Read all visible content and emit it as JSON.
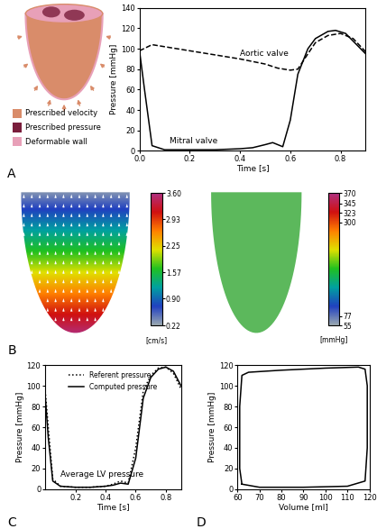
{
  "chart_data": [
    {
      "type": "line",
      "panel": "A",
      "x_label": "Time [s]",
      "y_label": "Pressure [mmHg]",
      "xlim": [
        0.0,
        0.9
      ],
      "xticks": [
        0.0,
        0.2,
        0.4,
        0.6,
        0.8
      ],
      "ylim": [
        0,
        140
      ],
      "yticks": [
        0,
        20,
        40,
        60,
        80,
        100,
        120,
        140
      ],
      "series": [
        {
          "name": "Aortic valve",
          "color": "#000000",
          "line_style": "dashed",
          "x": [
            0.0,
            0.05,
            0.1,
            0.2,
            0.3,
            0.4,
            0.5,
            0.55,
            0.6,
            0.63,
            0.67,
            0.7,
            0.75,
            0.8,
            0.85,
            0.9
          ],
          "values": [
            98,
            104,
            102,
            98,
            94,
            90,
            85,
            81,
            79,
            80,
            95,
            106,
            113,
            115,
            110,
            97
          ]
        },
        {
          "name": "Mitral valve",
          "color": "#000000",
          "line_style": "solid",
          "x": [
            0.0,
            0.02,
            0.05,
            0.1,
            0.2,
            0.3,
            0.4,
            0.45,
            0.5,
            0.53,
            0.57,
            0.6,
            0.63,
            0.67,
            0.7,
            0.75,
            0.78,
            0.82,
            0.86,
            0.9
          ],
          "values": [
            98,
            60,
            5,
            1,
            1,
            1,
            2,
            3,
            6,
            8,
            4,
            30,
            75,
            100,
            110,
            117,
            118,
            115,
            105,
            95
          ]
        }
      ],
      "annotations": [
        {
          "text": "Aortic valve",
          "x": 0.4,
          "y": 93
        },
        {
          "text": "Mitral valve",
          "x": 0.12,
          "y": 7
        }
      ]
    },
    {
      "type": "line",
      "panel": "C",
      "x_label": "Time [s]",
      "y_label": "Pressure [mmHg]",
      "xlim": [
        0.0,
        0.9
      ],
      "xticks": [
        0.2,
        0.4,
        0.6,
        0.8
      ],
      "ylim": [
        0,
        120
      ],
      "yticks": [
        0,
        20,
        40,
        60,
        80,
        100,
        120
      ],
      "legend": "upper center",
      "series": [
        {
          "name": "Referent pressure",
          "color": "#000000",
          "line_style": "dotted",
          "x": [
            0.0,
            0.02,
            0.05,
            0.1,
            0.2,
            0.3,
            0.4,
            0.45,
            0.5,
            0.55,
            0.6,
            0.65,
            0.7,
            0.75,
            0.8,
            0.85,
            0.9
          ],
          "values": [
            95,
            60,
            10,
            3,
            2,
            2,
            3,
            5,
            8,
            6,
            40,
            95,
            110,
            117,
            118,
            112,
            97
          ]
        },
        {
          "name": "Computed pressure",
          "color": "#000000",
          "line_style": "solid",
          "x": [
            0.0,
            0.02,
            0.05,
            0.1,
            0.2,
            0.3,
            0.4,
            0.45,
            0.5,
            0.55,
            0.6,
            0.65,
            0.7,
            0.75,
            0.8,
            0.85,
            0.9
          ],
          "values": [
            90,
            50,
            8,
            3,
            2,
            2,
            3,
            4,
            6,
            5,
            30,
            88,
            108,
            116,
            118,
            114,
            100
          ]
        }
      ],
      "annotations": [
        {
          "text": "Average LV pressure",
          "x": 0.1,
          "y": 12
        }
      ]
    },
    {
      "type": "line",
      "panel": "D",
      "x_label": "Volume [ml]",
      "y_label": "Pressure [mmHg]",
      "xlim": [
        60,
        120
      ],
      "xticks": [
        60,
        70,
        80,
        90,
        100,
        110,
        120
      ],
      "ylim": [
        0,
        120
      ],
      "yticks": [
        0,
        20,
        40,
        60,
        80,
        100,
        120
      ],
      "series": [
        {
          "color": "#000000",
          "line_style": "solid",
          "x": [
            62,
            61,
            61,
            62,
            65,
            80,
            100,
            115,
            118,
            119,
            119,
            118,
            110,
            90,
            70,
            62
          ],
          "values": [
            5,
            20,
            80,
            110,
            113,
            115,
            117,
            118,
            116,
            100,
            40,
            8,
            3,
            2,
            2,
            5
          ]
        }
      ]
    }
  ],
  "panel_A_diagram": {
    "legend": [
      {
        "label": "Prescribed velocity",
        "color": "#d98c6a"
      },
      {
        "label": "Prescribed pressure",
        "color": "#7a1e3c"
      },
      {
        "label": "Deformable wall",
        "color": "#e8a0b8"
      }
    ]
  },
  "panel_B": {
    "panel": "B",
    "velocity_colorbar": {
      "unit": "[cm/s]",
      "range": [
        0.22,
        3.6
      ],
      "ticks": [
        {
          "value": 3.6,
          "label": "3.60"
        },
        2.93,
        2.25,
        1.57,
        {
          "value": 0.9,
          "label": "0.90"
        },
        0.22
      ]
    },
    "pressure_colorbar": {
      "unit": "[mmHg]",
      "range": [
        55,
        370
      ],
      "color": "#5cb85c",
      "ticks": [
        370,
        345,
        323,
        300,
        77,
        55
      ]
    }
  }
}
